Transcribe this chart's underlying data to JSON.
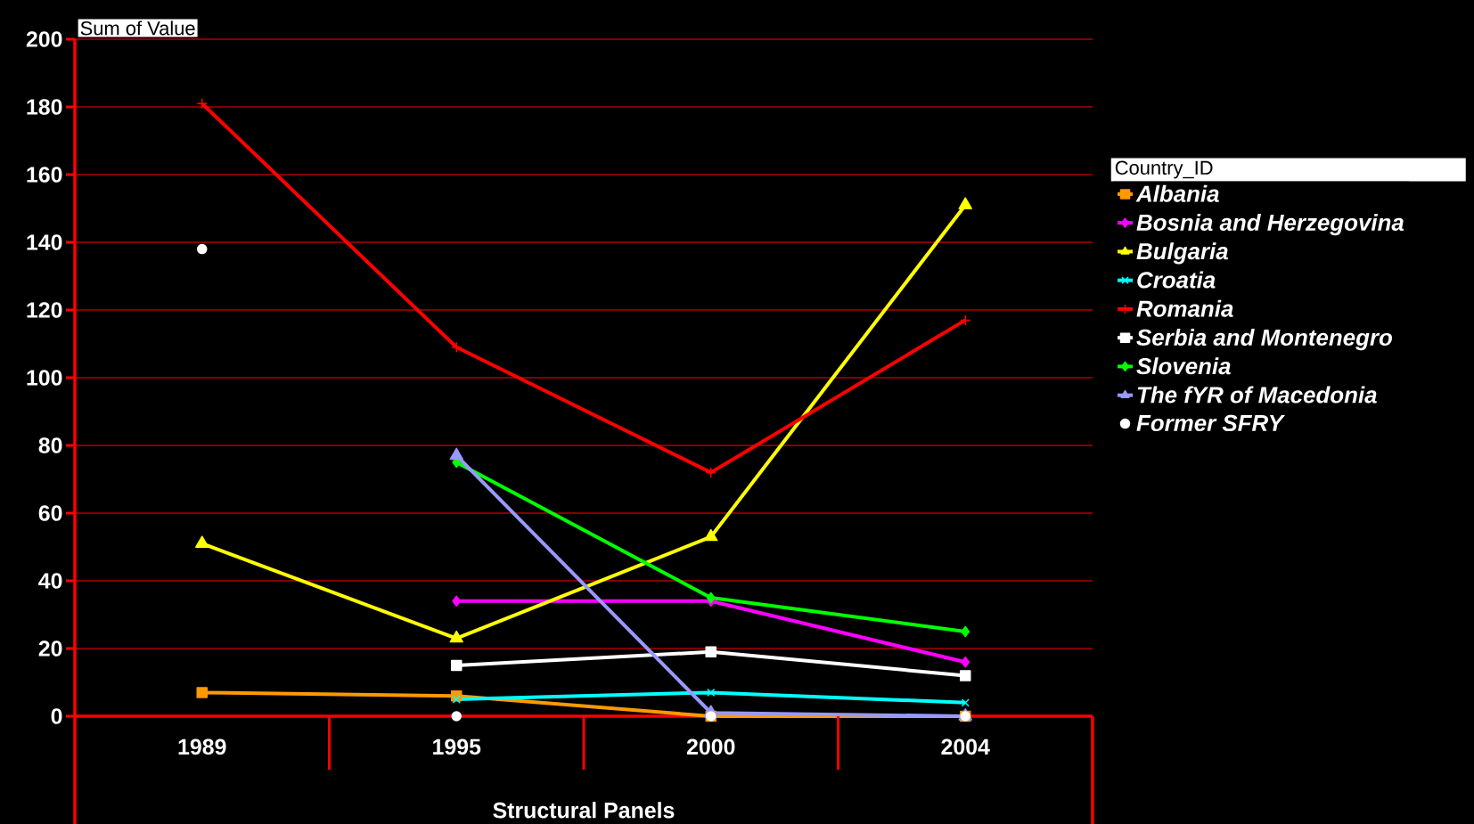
{
  "chart_data": {
    "type": "line",
    "xlabel": "Structural Panels",
    "ylabel": "Sum of Value",
    "legend_title": "Country_ID",
    "categories": [
      "1989",
      "1995",
      "2000",
      "2004"
    ],
    "ylim": [
      0,
      200
    ],
    "yticks": [
      0,
      20,
      40,
      60,
      80,
      100,
      120,
      140,
      160,
      180,
      200
    ],
    "grid": "y",
    "legend": "right",
    "series": [
      {
        "name": "Albania",
        "color": "#ff9900",
        "marker": "square",
        "values": [
          7,
          6,
          0,
          0
        ]
      },
      {
        "name": "Bosnia and Herzegovina",
        "color": "#ff00ff",
        "marker": "diamond",
        "values": [
          null,
          34,
          34,
          16
        ]
      },
      {
        "name": "Bulgaria",
        "color": "#ffff00",
        "marker": "triangle",
        "values": [
          51,
          23,
          53,
          151
        ]
      },
      {
        "name": "Croatia",
        "color": "#00ffff",
        "marker": "cross",
        "values": [
          null,
          5,
          7,
          4
        ]
      },
      {
        "name": "Romania",
        "color": "#ff0000",
        "marker": "plus",
        "values": [
          181,
          109,
          72,
          117
        ]
      },
      {
        "name": "Serbia and Montenegro",
        "color": "#ffffff",
        "marker": "square",
        "values": [
          null,
          15,
          19,
          12
        ]
      },
      {
        "name": "Slovenia",
        "color": "#00ff00",
        "marker": "diamond",
        "values": [
          null,
          75,
          35,
          25
        ]
      },
      {
        "name": "The fYR of Macedonia",
        "color": "#9999ff",
        "marker": "triangle",
        "values": [
          null,
          77,
          1,
          0
        ]
      },
      {
        "name": "Former SFRY",
        "type": "scatter",
        "color": "#ffffff",
        "marker": "circle",
        "values": [
          138,
          0,
          0,
          0
        ]
      }
    ]
  }
}
